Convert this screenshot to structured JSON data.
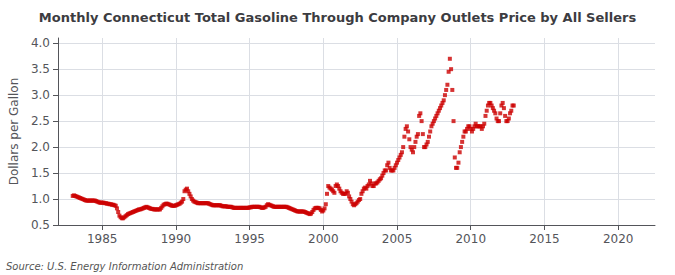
{
  "chart_data": {
    "type": "scatter",
    "title": "Monthly Connecticut Total Gasoline Through Company Outlets Price by All Sellers",
    "ylabel": "Dollars per Gallon",
    "annotations": [
      "Source: U.S. Energy Information Administration"
    ],
    "color": "#cc0000",
    "marker": "square",
    "grid": true,
    "xlim": [
      1982.0,
      2022.5
    ],
    "ylim": [
      0.5,
      4.1
    ],
    "xticks": [
      1985,
      1990,
      1995,
      2000,
      2005,
      2010,
      2015,
      2020
    ],
    "yticks": [
      0.5,
      {
        "value": 1.0,
        "label": "1.0"
      },
      1.5,
      {
        "value": 2.0,
        "label": "2.0"
      },
      2.5,
      {
        "value": 3.0,
        "label": "3.0"
      },
      3.5,
      {
        "value": 4.0,
        "label": "4.0"
      }
    ],
    "x": [
      1983.0,
      1983.083,
      1983.167,
      1983.25,
      1983.333,
      1983.417,
      1983.5,
      1983.583,
      1983.667,
      1983.75,
      1983.833,
      1983.917,
      1984.0,
      1984.083,
      1984.167,
      1984.25,
      1984.333,
      1984.417,
      1984.5,
      1984.583,
      1984.667,
      1984.75,
      1984.833,
      1984.917,
      1985.0,
      1985.083,
      1985.167,
      1985.25,
      1985.333,
      1985.417,
      1985.5,
      1985.583,
      1985.667,
      1985.75,
      1985.833,
      1985.917,
      1986.0,
      1986.083,
      1986.167,
      1986.25,
      1986.333,
      1986.417,
      1986.5,
      1986.583,
      1986.667,
      1986.75,
      1986.833,
      1986.917,
      1987.0,
      1987.083,
      1987.167,
      1987.25,
      1987.333,
      1987.417,
      1987.5,
      1987.583,
      1987.667,
      1987.75,
      1987.833,
      1987.917,
      1988.0,
      1988.083,
      1988.167,
      1988.25,
      1988.333,
      1988.417,
      1988.5,
      1988.583,
      1988.667,
      1988.75,
      1988.833,
      1988.917,
      1989.0,
      1989.083,
      1989.167,
      1989.25,
      1989.333,
      1989.417,
      1989.5,
      1989.583,
      1989.667,
      1989.75,
      1989.833,
      1989.917,
      1990.0,
      1990.083,
      1990.167,
      1990.25,
      1990.333,
      1990.417,
      1990.5,
      1990.583,
      1990.667,
      1990.75,
      1990.833,
      1990.917,
      1991.0,
      1991.083,
      1991.167,
      1991.25,
      1991.333,
      1991.417,
      1991.5,
      1991.583,
      1991.667,
      1991.75,
      1991.833,
      1991.917,
      1992.0,
      1992.083,
      1992.167,
      1992.25,
      1992.333,
      1992.417,
      1992.5,
      1992.583,
      1992.667,
      1992.75,
      1992.833,
      1992.917,
      1993.0,
      1993.083,
      1993.167,
      1993.25,
      1993.333,
      1993.417,
      1993.5,
      1993.583,
      1993.667,
      1993.75,
      1993.833,
      1993.917,
      1994.0,
      1994.083,
      1994.167,
      1994.25,
      1994.333,
      1994.417,
      1994.5,
      1994.583,
      1994.667,
      1994.75,
      1994.833,
      1994.917,
      1995.0,
      1995.083,
      1995.167,
      1995.25,
      1995.333,
      1995.417,
      1995.5,
      1995.583,
      1995.667,
      1995.75,
      1995.833,
      1995.917,
      1996.0,
      1996.083,
      1996.167,
      1996.25,
      1996.333,
      1996.417,
      1996.5,
      1996.583,
      1996.667,
      1996.75,
      1996.833,
      1996.917,
      1997.0,
      1997.083,
      1997.167,
      1997.25,
      1997.333,
      1997.417,
      1997.5,
      1997.583,
      1997.667,
      1997.75,
      1997.833,
      1997.917,
      1998.0,
      1998.083,
      1998.167,
      1998.25,
      1998.333,
      1998.417,
      1998.5,
      1998.583,
      1998.667,
      1998.75,
      1998.833,
      1998.917,
      1999.0,
      1999.083,
      1999.167,
      1999.25,
      1999.333,
      1999.417,
      1999.5,
      1999.583,
      1999.667,
      1999.75,
      1999.833,
      1999.917,
      2000.0,
      2000.083,
      2000.167,
      2000.25,
      2000.333,
      2000.417,
      2000.5,
      2000.583,
      2000.667,
      2000.75,
      2000.833,
      2000.917,
      2001.0,
      2001.083,
      2001.167,
      2001.25,
      2001.333,
      2001.417,
      2001.5,
      2001.583,
      2001.667,
      2001.75,
      2001.833,
      2001.917,
      2002.0,
      2002.083,
      2002.167,
      2002.25,
      2002.333,
      2002.417,
      2002.5,
      2002.583,
      2002.667,
      2002.75,
      2002.833,
      2002.917,
      2003.0,
      2003.083,
      2003.167,
      2003.25,
      2003.333,
      2003.417,
      2003.5,
      2003.583,
      2003.667,
      2003.75,
      2003.833,
      2003.917,
      2004.0,
      2004.083,
      2004.167,
      2004.25,
      2004.333,
      2004.417,
      2004.5,
      2004.583,
      2004.667,
      2004.75,
      2004.833,
      2004.917,
      2005.0,
      2005.083,
      2005.167,
      2005.25,
      2005.333,
      2005.417,
      2005.5,
      2005.583,
      2005.667,
      2005.75,
      2005.833,
      2005.917,
      2006.0,
      2006.083,
      2006.167,
      2006.25,
      2006.333,
      2006.417,
      2006.5,
      2006.583,
      2006.667,
      2006.75,
      2006.833,
      2006.917,
      2007.0,
      2007.083,
      2007.167,
      2007.25,
      2007.333,
      2007.417,
      2007.5,
      2007.583,
      2007.667,
      2007.75,
      2007.833,
      2007.917,
      2008.0,
      2008.083,
      2008.167,
      2008.25,
      2008.333,
      2008.417,
      2008.5,
      2008.583,
      2008.667,
      2008.75,
      2008.833,
      2008.917,
      2009.0,
      2009.083,
      2009.167,
      2009.25,
      2009.333,
      2009.417,
      2009.5,
      2009.583,
      2009.667,
      2009.75,
      2009.833,
      2009.917,
      2010.0,
      2010.083,
      2010.167,
      2010.25,
      2010.333,
      2010.417,
      2010.5,
      2010.583,
      2010.667,
      2010.75,
      2010.833,
      2010.917,
      2011.0,
      2011.083,
      2011.167,
      2011.25,
      2011.333,
      2011.417,
      2011.5,
      2011.583,
      2011.667,
      2011.75,
      2011.833,
      2011.917,
      2012.0,
      2012.083,
      2012.167,
      2012.25,
      2012.333,
      2012.417,
      2012.5,
      2012.583,
      2012.667,
      2012.75,
      2012.833,
      2012.917
    ],
    "values": [
      1.06,
      1.07,
      1.06,
      1.05,
      1.04,
      1.03,
      1.02,
      1.01,
      1.0,
      0.99,
      0.98,
      0.97,
      0.97,
      0.97,
      0.97,
      0.97,
      0.97,
      0.97,
      0.97,
      0.96,
      0.95,
      0.94,
      0.93,
      0.93,
      0.93,
      0.93,
      0.92,
      0.92,
      0.91,
      0.91,
      0.9,
      0.9,
      0.89,
      0.89,
      0.88,
      0.87,
      0.82,
      0.75,
      0.68,
      0.65,
      0.63,
      0.63,
      0.65,
      0.67,
      0.69,
      0.71,
      0.72,
      0.73,
      0.74,
      0.75,
      0.76,
      0.77,
      0.78,
      0.79,
      0.8,
      0.8,
      0.81,
      0.82,
      0.83,
      0.84,
      0.85,
      0.84,
      0.83,
      0.82,
      0.81,
      0.81,
      0.8,
      0.8,
      0.8,
      0.8,
      0.8,
      0.8,
      0.83,
      0.86,
      0.89,
      0.9,
      0.91,
      0.91,
      0.9,
      0.89,
      0.88,
      0.87,
      0.87,
      0.87,
      0.88,
      0.89,
      0.9,
      0.91,
      0.93,
      0.95,
      1.0,
      1.15,
      1.18,
      1.2,
      1.15,
      1.1,
      1.05,
      1.0,
      0.97,
      0.95,
      0.94,
      0.93,
      0.92,
      0.92,
      0.92,
      0.92,
      0.92,
      0.92,
      0.92,
      0.92,
      0.92,
      0.91,
      0.9,
      0.89,
      0.88,
      0.88,
      0.88,
      0.88,
      0.88,
      0.88,
      0.88,
      0.87,
      0.86,
      0.86,
      0.86,
      0.86,
      0.85,
      0.85,
      0.85,
      0.85,
      0.84,
      0.83,
      0.83,
      0.83,
      0.83,
      0.83,
      0.83,
      0.83,
      0.83,
      0.83,
      0.83,
      0.83,
      0.83,
      0.83,
      0.84,
      0.84,
      0.85,
      0.85,
      0.85,
      0.85,
      0.85,
      0.85,
      0.85,
      0.84,
      0.83,
      0.83,
      0.84,
      0.85,
      0.88,
      0.9,
      0.89,
      0.88,
      0.87,
      0.86,
      0.85,
      0.85,
      0.85,
      0.85,
      0.85,
      0.85,
      0.85,
      0.85,
      0.85,
      0.85,
      0.85,
      0.84,
      0.83,
      0.82,
      0.81,
      0.8,
      0.79,
      0.78,
      0.77,
      0.76,
      0.76,
      0.76,
      0.76,
      0.76,
      0.76,
      0.75,
      0.74,
      0.73,
      0.72,
      0.71,
      0.72,
      0.75,
      0.79,
      0.82,
      0.83,
      0.83,
      0.83,
      0.82,
      0.79,
      0.76,
      0.78,
      0.82,
      0.9,
      1.1,
      1.25,
      1.22,
      1.2,
      1.18,
      1.15,
      1.12,
      1.25,
      1.28,
      1.25,
      1.2,
      1.15,
      1.12,
      1.1,
      1.1,
      1.1,
      1.15,
      1.12,
      1.05,
      1.0,
      0.95,
      0.9,
      0.88,
      0.9,
      0.92,
      0.95,
      0.98,
      1.0,
      1.1,
      1.15,
      1.2,
      1.22,
      1.2,
      1.25,
      1.28,
      1.35,
      1.3,
      1.25,
      1.25,
      1.3,
      1.3,
      1.32,
      1.35,
      1.38,
      1.4,
      1.45,
      1.5,
      1.55,
      1.55,
      1.65,
      1.7,
      1.6,
      1.55,
      1.55,
      1.55,
      1.6,
      1.65,
      1.7,
      1.75,
      1.8,
      1.85,
      1.9,
      2.0,
      2.2,
      2.35,
      2.4,
      2.3,
      2.15,
      2.0,
      1.95,
      1.9,
      2.0,
      2.1,
      2.2,
      2.25,
      2.6,
      2.65,
      2.5,
      2.25,
      2.0,
      2.0,
      2.05,
      2.1,
      2.2,
      2.3,
      2.4,
      2.45,
      2.5,
      2.55,
      2.6,
      2.65,
      2.7,
      2.75,
      2.8,
      2.85,
      2.9,
      3.0,
      3.1,
      3.2,
      3.45,
      3.7,
      3.5,
      3.1,
      2.5,
      1.8,
      1.6,
      1.6,
      1.7,
      1.9,
      2.0,
      2.1,
      2.2,
      2.3,
      2.3,
      2.35,
      2.4,
      2.4,
      2.35,
      2.3,
      2.35,
      2.4,
      2.45,
      2.4,
      2.4,
      2.4,
      2.4,
      2.35,
      2.4,
      2.45,
      2.6,
      2.7,
      2.8,
      2.85,
      2.85,
      2.8,
      2.75,
      2.7,
      2.65,
      2.55,
      2.5,
      2.5,
      2.65,
      2.8,
      2.85,
      2.75,
      2.6,
      2.5,
      2.5,
      2.55,
      2.65,
      2.7,
      2.8,
      2.8
    ]
  }
}
